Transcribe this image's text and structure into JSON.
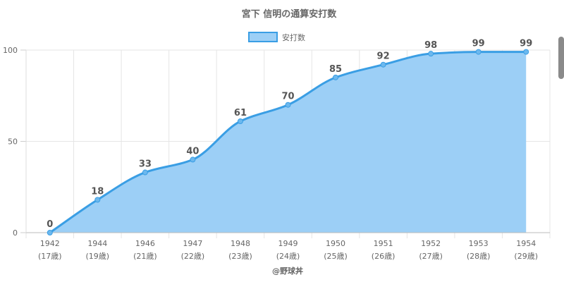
{
  "chart_data": {
    "type": "area",
    "title": "宮下 信明の通算安打数",
    "x": [
      "1942",
      "1944",
      "1946",
      "1947",
      "1948",
      "1949",
      "1950",
      "1951",
      "1952",
      "1953",
      "1954"
    ],
    "x_sublabels": [
      "(17歳)",
      "(19歳)",
      "(21歳)",
      "(22歳)",
      "(23歳)",
      "(24歳)",
      "(25歳)",
      "(26歳)",
      "(27歳)",
      "(28歳)",
      "(29歳)"
    ],
    "series": [
      {
        "name": "安打数",
        "values": [
          0,
          18,
          33,
          40,
          61,
          70,
          85,
          92,
          98,
          99,
          99
        ]
      }
    ],
    "yticks": [
      0,
      50,
      100
    ],
    "ylim": [
      0,
      100
    ],
    "grid": true,
    "legend_position": "top",
    "colors": {
      "line": "#3a9ee4",
      "fill": "#9ccff6",
      "grid": "#e5e5e5"
    }
  },
  "footer": {
    "credit": "@野球丼"
  }
}
